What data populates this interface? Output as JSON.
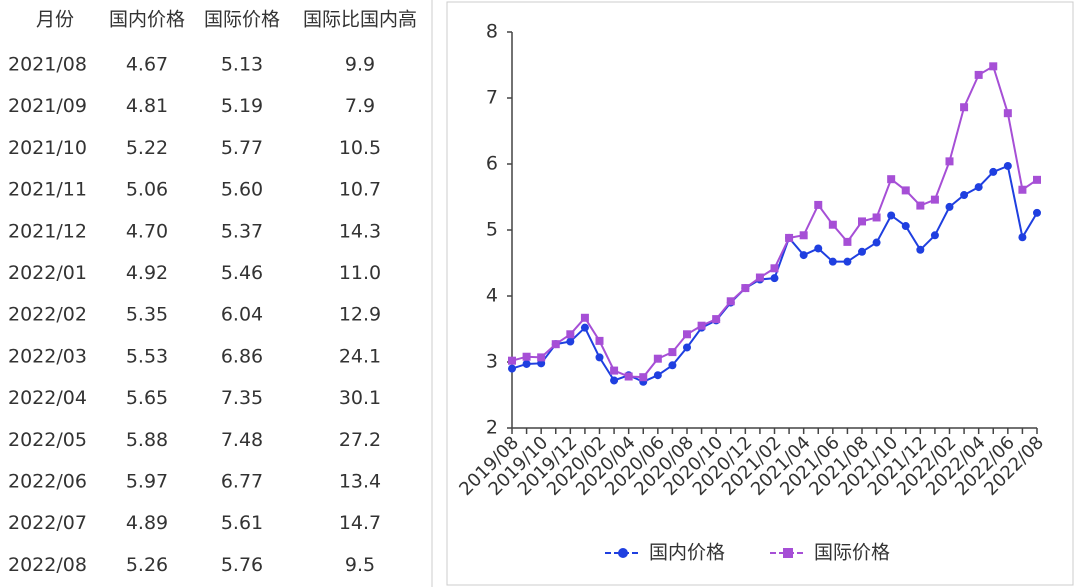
{
  "table": {
    "header": [
      "月份",
      "国内价格",
      "国际价格",
      "国际比国内高"
    ],
    "rows": [
      [
        "2021/08",
        "4.67",
        "5.13",
        "9.9"
      ],
      [
        "2021/09",
        "4.81",
        "5.19",
        "7.9"
      ],
      [
        "2021/10",
        "5.22",
        "5.77",
        "10.5"
      ],
      [
        "2021/11",
        "5.06",
        "5.60",
        "10.7"
      ],
      [
        "2021/12",
        "4.70",
        "5.37",
        "14.3"
      ],
      [
        "2022/01",
        "4.92",
        "5.46",
        "11.0"
      ],
      [
        "2022/02",
        "5.35",
        "6.04",
        "12.9"
      ],
      [
        "2022/03",
        "5.53",
        "6.86",
        "24.1"
      ],
      [
        "2022/04",
        "5.65",
        "7.35",
        "30.1"
      ],
      [
        "2022/05",
        "5.88",
        "7.48",
        "27.2"
      ],
      [
        "2022/06",
        "5.97",
        "6.77",
        "13.4"
      ],
      [
        "2022/07",
        "4.89",
        "5.61",
        "14.7"
      ],
      [
        "2022/08",
        "5.26",
        "5.76",
        "9.5"
      ]
    ]
  },
  "chart_data": {
    "type": "line",
    "categories": [
      "2019/08",
      null,
      "2019/10",
      null,
      "2019/12",
      null,
      "2020/02",
      null,
      "2020/04",
      null,
      "2020/06",
      null,
      "2020/08",
      null,
      "2020/10",
      null,
      "2020/12",
      null,
      "2021/02",
      null,
      "2021/04",
      null,
      "2021/06",
      null,
      "2021/08",
      null,
      "2021/10",
      null,
      "2021/12",
      null,
      "2022/02",
      null,
      "2022/04",
      null,
      "2022/06",
      null,
      "2022/08"
    ],
    "series": [
      {
        "name": "国内价格",
        "color": "#1f3fe0",
        "marker": "circle",
        "values": [
          2.9,
          2.97,
          2.98,
          3.27,
          3.31,
          3.52,
          3.07,
          2.72,
          2.8,
          2.7,
          2.8,
          2.95,
          3.22,
          3.52,
          3.63,
          3.9,
          4.12,
          4.25,
          4.27,
          4.88,
          4.62,
          4.72,
          4.52,
          4.52,
          4.67,
          4.81,
          5.22,
          5.06,
          4.7,
          4.92,
          5.35,
          5.53,
          5.65,
          5.88,
          5.97,
          4.89,
          5.26
        ]
      },
      {
        "name": "国际价格",
        "color": "#a64fd6",
        "marker": "square",
        "values": [
          3.02,
          3.08,
          3.07,
          3.27,
          3.42,
          3.67,
          3.32,
          2.87,
          2.78,
          2.77,
          3.05,
          3.15,
          3.42,
          3.55,
          3.65,
          3.92,
          4.12,
          4.28,
          4.42,
          4.88,
          4.92,
          5.38,
          5.08,
          4.82,
          5.13,
          5.19,
          5.77,
          5.6,
          5.37,
          5.46,
          6.04,
          6.86,
          7.35,
          7.48,
          6.77,
          5.61,
          5.76
        ]
      }
    ],
    "ylim": [
      2,
      8
    ],
    "yticks": [
      2,
      3,
      4,
      5,
      6,
      7,
      8
    ],
    "grid": false,
    "legend": "bottom"
  }
}
